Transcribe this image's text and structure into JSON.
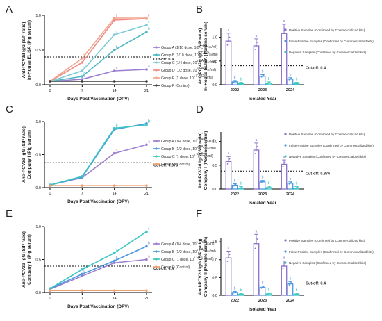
{
  "chart_data": [
    {
      "panel": "A",
      "type": "line",
      "xlabel": "Days Post Vaccination (DPV)",
      "ylabel_lines": [
        "Anti-PCV2d IgG (S/P ratio)",
        "In-House ELISA (Pig serum)"
      ],
      "x": [
        0,
        7,
        14,
        21
      ],
      "ylim": [
        0,
        1.0
      ],
      "yticks": [
        0.0,
        0.5,
        1.0
      ],
      "cutoff": 0.4,
      "cutoff_label": "Cut-off: 0.4",
      "legend_position": "right",
      "series": [
        {
          "name": "Group A (1/10 dose, 10^4 FAID50/ml)",
          "color": "#9b7fcf",
          "values": [
            0.05,
            0.08,
            0.2,
            0.22
          ],
          "letters": [
            "",
            "a",
            "a",
            "a"
          ]
        },
        {
          "name": "Group B (1/10 dose, 10^5 FAID50/ml)",
          "color": "#4fb7c4",
          "values": [
            0.05,
            0.12,
            0.5,
            0.76
          ],
          "letters": [
            "",
            "b",
            "b",
            "b"
          ]
        },
        {
          "name": "Group C (1/4 dose, 10^5 FAID50/ml)",
          "color": "#7ccad6",
          "values": [
            0.05,
            0.2,
            0.72,
            0.86
          ],
          "letters": [
            "",
            "b",
            "c",
            "c"
          ]
        },
        {
          "name": "Group D (1/2 dose, 10^5 FAID50/ml)",
          "color": "#ef8c88",
          "values": [
            0.05,
            0.32,
            0.93,
            0.95
          ],
          "letters": [
            "",
            "b",
            "c",
            "c"
          ]
        },
        {
          "name": "Group E (1 dose, 10^5 FAID50/ml)",
          "color": "#f3a48a",
          "values": [
            0.05,
            0.38,
            0.96,
            0.96
          ],
          "letters": [
            "",
            "b",
            "c",
            "c"
          ]
        },
        {
          "name": "Group F (Control)",
          "color": "#3a3a3a",
          "values": [
            0.05,
            0.05,
            0.05,
            0.05
          ],
          "letters": [
            "",
            "",
            "",
            ""
          ]
        }
      ]
    },
    {
      "panel": "B",
      "type": "bar",
      "xlabel": "Isolated Year",
      "ylabel_lines": [
        "Anti-PCV2d IgG (S/P ratio)",
        "In-House ELISA (Porcine serum)"
      ],
      "categories": [
        "2022",
        "2023",
        "2024"
      ],
      "ylim": [
        0,
        1.2
      ],
      "yticks": [
        0.0,
        0.5,
        1.0
      ],
      "cutoff": 0.4,
      "cutoff_label": "Cut-off: 0.4",
      "legend_position": "right",
      "series": [
        {
          "name": "Positive Samples (Confirmed by Commercialized kits)",
          "color": "#8b6fcb",
          "values": [
            0.92,
            0.82,
            1.08
          ],
          "letters": [
            "a",
            "a",
            "a"
          ]
        },
        {
          "name": "False Positive Samples (Confirmed by Commercialized kits)",
          "color": "#4a97e0",
          "values": [
            0.06,
            0.18,
            0.12
          ],
          "letters": [
            "b",
            "b",
            "b"
          ]
        },
        {
          "name": "Negative Samples (Confirmed by Commercialized kits)",
          "color": "#3cc6c2",
          "values": [
            0.02,
            0.03,
            0.02
          ],
          "letters": [
            "b",
            "b",
            "b"
          ]
        }
      ]
    },
    {
      "panel": "C",
      "type": "line",
      "xlabel": "Days Post Vaccination (DPV)",
      "ylabel_lines": [
        "Anti-PCV2d IgG (S/P ratio)",
        "Company I (Pig serum)"
      ],
      "x": [
        0,
        7,
        14,
        21
      ],
      "ylim": [
        0,
        1.0
      ],
      "yticks": [
        0.0,
        0.5,
        1.0
      ],
      "cutoff": 0.376,
      "cutoff_label": "Cut-off: 0.376",
      "legend_position": "right",
      "series": [
        {
          "name": "Group A (1/4 dose, 10^5 FAID50/ml)",
          "color": "#9b7fcf",
          "values": [
            0.04,
            0.15,
            0.52,
            0.65
          ],
          "letters": [
            "",
            "a",
            "a",
            "a"
          ]
        },
        {
          "name": "Group B (1/2 dose, 10^5 FAID50/ml)",
          "color": "#4a97e0",
          "values": [
            0.04,
            0.16,
            0.88,
            0.97
          ],
          "letters": [
            "",
            "a",
            "b",
            "b"
          ]
        },
        {
          "name": "Group C (1 dose, 10^5 FAID50/ml)",
          "color": "#3cc6c2",
          "values": [
            0.04,
            0.17,
            0.9,
            0.95
          ],
          "letters": [
            "",
            "a",
            "b",
            "b"
          ]
        },
        {
          "name": "Group D (Control)",
          "color": "#f0a070",
          "values": [
            0.03,
            0.03,
            0.03,
            0.03
          ],
          "letters": [
            "",
            "",
            "",
            ""
          ]
        }
      ]
    },
    {
      "panel": "D",
      "type": "bar",
      "xlabel": "Isolated Year",
      "ylabel_lines": [
        "Anti-PCV2d IgG (S/P ratio)",
        "Company I (Porcine serum)"
      ],
      "categories": [
        "2022",
        "2023",
        "2024"
      ],
      "ylim": [
        0,
        1.2
      ],
      "yticks": [
        0.0,
        0.5,
        1.0
      ],
      "cutoff": 0.376,
      "cutoff_label": "Cut-off: 0.376",
      "legend_position": "right",
      "series": [
        {
          "name": "Positive Samples (Confirmed by Commercialized kits)",
          "color": "#8b6fcb",
          "values": [
            0.58,
            0.82,
            0.52
          ],
          "letters": [
            "a",
            "a",
            "a"
          ]
        },
        {
          "name": "False Positive Samples (Confirmed by Commercialized kits)",
          "color": "#4a97e0",
          "values": [
            0.08,
            0.15,
            0.12
          ],
          "letters": [
            "b",
            "b",
            "b"
          ]
        },
        {
          "name": "Negative Samples (Confirmed by Commercialized kits)",
          "color": "#3cc6c2",
          "values": [
            0.02,
            0.03,
            0.02
          ],
          "letters": [
            "b",
            "b",
            "b"
          ]
        }
      ]
    },
    {
      "panel": "E",
      "type": "line",
      "xlabel": "Days Post Vaccination (DPV)",
      "ylabel_lines": [
        "Anti-PCV2d IgG (S/P ratio)",
        "Company II (Pig serum)"
      ],
      "x": [
        0,
        7,
        14,
        21
      ],
      "ylim": [
        0,
        1.0
      ],
      "yticks": [
        0.0,
        0.5,
        1.0
      ],
      "cutoff": 0.4,
      "cutoff_label": "Cut-off: 0.4",
      "legend_position": "right",
      "series": [
        {
          "name": "Group A (1/4 dose, 10^5 FAID50/ml)",
          "color": "#9b7fcf",
          "values": [
            0.05,
            0.25,
            0.45,
            0.5
          ],
          "letters": [
            "",
            "a",
            "a",
            "a"
          ]
        },
        {
          "name": "Group B (1/2 dose, 10^5 FAID50/ml)",
          "color": "#4a97e0",
          "values": [
            0.06,
            0.28,
            0.48,
            0.7
          ],
          "letters": [
            "",
            "b",
            "b",
            "b"
          ]
        },
        {
          "name": "Group C (1 dose, 10^5 FAID50/ml)",
          "color": "#3cc6c2",
          "values": [
            0.06,
            0.35,
            0.6,
            0.92
          ],
          "letters": [
            "",
            "c",
            "c",
            "c"
          ]
        },
        {
          "name": "Group D (Control)",
          "color": "#f0a070",
          "values": [
            0.03,
            0.03,
            0.03,
            0.03
          ],
          "letters": [
            "",
            "",
            "",
            ""
          ]
        }
      ]
    },
    {
      "panel": "F",
      "type": "bar",
      "xlabel": "Isolated Year",
      "ylabel_lines": [
        "Anti-PCV2d IgG (S/P ratio)",
        "Company II (Porcine serum)"
      ],
      "categories": [
        "2022",
        "2023",
        "2024"
      ],
      "ylim": [
        0,
        1.6
      ],
      "yticks": [
        0.0,
        0.5,
        1.0,
        1.5
      ],
      "cutoff": 0.4,
      "cutoff_label": "Cut-off: 0.4",
      "legend_position": "right",
      "series": [
        {
          "name": "Positive Samples (Confirmed by Commercialized kits)",
          "color": "#8b6fcb",
          "values": [
            1.05,
            1.45,
            0.82
          ],
          "letters": [
            "a",
            "a",
            "a"
          ]
        },
        {
          "name": "False Positive Samples (Confirmed by Commercialized kits)",
          "color": "#4a97e0",
          "values": [
            0.08,
            0.22,
            0.32
          ],
          "letters": [
            "b",
            "b",
            "b"
          ]
        },
        {
          "name": "Negative Samples (Confirmed by Commercialized kits)",
          "color": "#3cc6c2",
          "values": [
            0.03,
            0.04,
            0.03
          ],
          "letters": [
            "b",
            "b",
            "b"
          ]
        }
      ]
    }
  ]
}
